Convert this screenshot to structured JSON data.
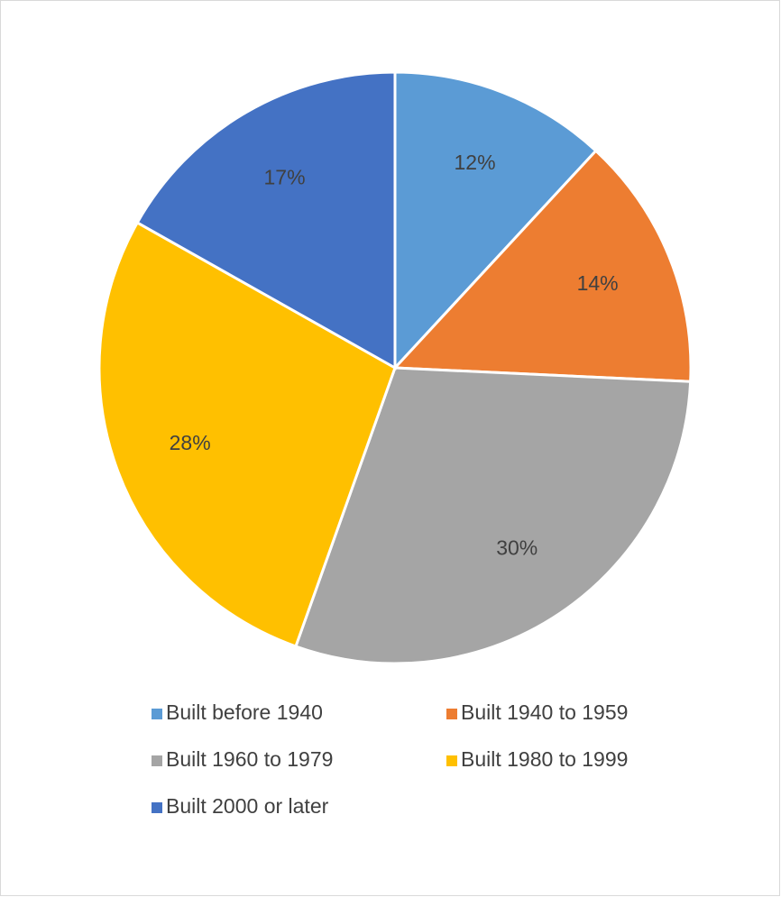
{
  "chart_data": {
    "type": "pie",
    "categories": [
      "Built before 1940",
      "Built 1940 to 1959",
      "Built 1960 to 1979",
      "Built 1980 to 1999",
      "Built 2000 or later"
    ],
    "values": [
      12,
      14,
      30,
      28,
      17
    ],
    "value_labels": [
      "12%",
      "14%",
      "30%",
      "28%",
      "17%"
    ],
    "colors": [
      "#5b9bd5",
      "#ed7d31",
      "#a5a5a5",
      "#ffc000",
      "#4472c4"
    ],
    "legend": "bottom"
  }
}
